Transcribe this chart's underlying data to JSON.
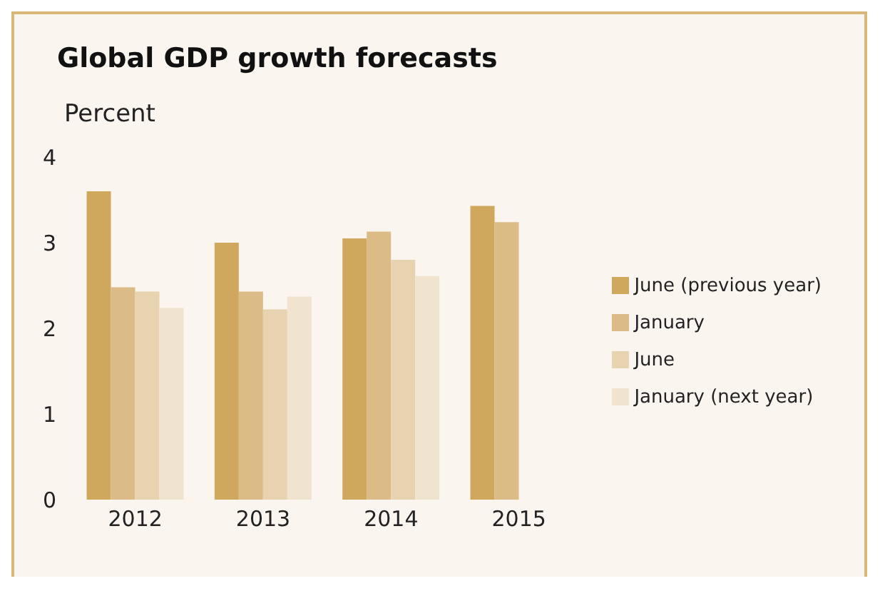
{
  "chart_data": {
    "type": "bar",
    "title": "Global GDP growth forecasts",
    "ylabel": "Percent",
    "categories": [
      "2012",
      "2013",
      "2014",
      "2015"
    ],
    "series": [
      {
        "name": "June (previous year)",
        "color": "#cfa85e",
        "values": [
          3.6,
          3.0,
          3.05,
          3.43
        ]
      },
      {
        "name": "January",
        "color": "#dbbc86",
        "values": [
          2.48,
          2.43,
          3.13,
          3.24
        ]
      },
      {
        "name": "June",
        "color": "#e8d3b0",
        "values": [
          2.43,
          2.22,
          2.8,
          null
        ]
      },
      {
        "name": "January (next year)",
        "color": "#f1e4cf",
        "values": [
          2.24,
          2.37,
          2.61,
          null
        ]
      }
    ],
    "ylim": [
      0,
      4
    ],
    "yticks": [
      0,
      1,
      2,
      3,
      4
    ],
    "grid": false,
    "legend": "right"
  }
}
